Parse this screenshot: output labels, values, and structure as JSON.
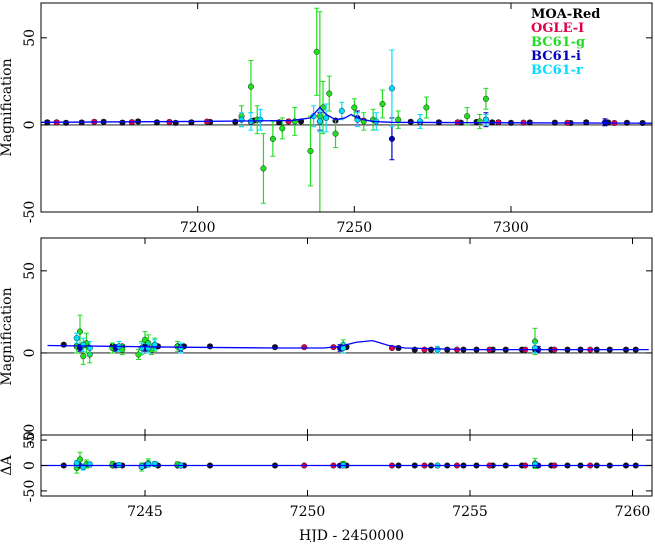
{
  "chart_data": [
    {
      "id": "top",
      "type": "scatter",
      "title": "",
      "xlabel": "",
      "ylabel": "Magnification",
      "xlim": [
        7150,
        7345
      ],
      "ylim": [
        -50,
        70
      ],
      "xticks": [
        7200,
        7250,
        7300
      ],
      "xtick_labels": [
        "7200",
        "7250",
        "7300"
      ],
      "yticks": [
        -50,
        0,
        50
      ],
      "ytick_labels": [
        "-50",
        "0",
        "50"
      ],
      "legend": {
        "placement": "top-right",
        "entries": [
          {
            "name": "MOA-Red",
            "color": "#000000"
          },
          {
            "name": "OGLE-I",
            "color": "#e0004f"
          },
          {
            "name": "BC61-g",
            "color": "#22dd22"
          },
          {
            "name": "BC61-i",
            "color": "#0000c0"
          },
          {
            "name": "BC61-r",
            "color": "#00ddff"
          }
        ]
      },
      "model": {
        "color": "#0000ff",
        "x": [
          7150,
          7200,
          7230,
          7236,
          7239,
          7241,
          7244,
          7247,
          7249,
          7251,
          7253,
          7256,
          7262,
          7300,
          7345
        ],
        "y": [
          1.5,
          2,
          2.5,
          4,
          10,
          6,
          3,
          4,
          6,
          4,
          3,
          2,
          1.5,
          1.2,
          1
        ]
      },
      "series": [
        {
          "name": "MOA-Red",
          "color": "#101030",
          "x": [
            7152,
            7158,
            7163,
            7170,
            7176,
            7181,
            7187,
            7193,
            7198,
            7204,
            7212,
            7218,
            7226,
            7233,
            7244,
            7268,
            7277,
            7284,
            7289,
            7294,
            7300,
            7306,
            7314,
            7319,
            7324,
            7331,
            7337,
            7342
          ],
          "y": [
            1.5,
            1.2,
            1.4,
            1.8,
            1.3,
            2,
            1.5,
            1.2,
            1.5,
            1.7,
            1.8,
            2.5,
            1.5,
            2,
            2.5,
            1.8,
            1.5,
            1.3,
            1.7,
            1.5,
            1.2,
            1.4,
            1.3,
            1.1,
            1.5,
            1.4,
            1.2,
            1.1
          ],
          "err": [
            1,
            1,
            1,
            1,
            1,
            1,
            1,
            1,
            1,
            1,
            1,
            1,
            1,
            1,
            1,
            1,
            1,
            1,
            1,
            1,
            1,
            1,
            1,
            1,
            1,
            1,
            1,
            1
          ]
        },
        {
          "name": "OGLE-I",
          "color": "#e0004f",
          "x": [
            7155,
            7167,
            7179,
            7191,
            7203,
            7217,
            7229,
            7253,
            7271,
            7283,
            7296,
            7304,
            7318,
            7333
          ],
          "y": [
            1.5,
            1.8,
            1.6,
            1.7,
            1.9,
            1.8,
            2,
            2.5,
            1.6,
            1.5,
            1.5,
            1.3,
            1.2,
            1.1
          ],
          "err": [
            1,
            1,
            1,
            1,
            1,
            1,
            1,
            1,
            1,
            1,
            1,
            1,
            1,
            1
          ]
        },
        {
          "name": "BC61-g",
          "color": "#22dd22",
          "x": [
            7214,
            7217,
            7219,
            7221,
            7224,
            7227,
            7231,
            7236,
            7238,
            7239,
            7240,
            7242,
            7244,
            7250,
            7253,
            7256,
            7259,
            7264,
            7273,
            7286,
            7290,
            7292
          ],
          "y": [
            5,
            22,
            3,
            -25,
            -8,
            -2,
            2,
            -15,
            42,
            5,
            10,
            18,
            -5,
            10,
            2,
            3,
            12,
            3,
            10,
            5,
            2,
            15
          ],
          "err": [
            6,
            15,
            8,
            20,
            10,
            6,
            8,
            20,
            25,
            60,
            15,
            10,
            8,
            5,
            5,
            6,
            8,
            5,
            6,
            5,
            4,
            6
          ]
        },
        {
          "name": "BC61-i",
          "color": "#0000c0",
          "x": [
            7239,
            7251,
            7262,
            7292,
            7330
          ],
          "y": [
            2,
            4,
            -8,
            3,
            1.5
          ],
          "err": [
            5,
            4,
            12,
            4,
            2
          ]
        },
        {
          "name": "BC61-r",
          "color": "#00ddff",
          "x": [
            7214,
            7217,
            7220,
            7237,
            7239,
            7241,
            7246,
            7251,
            7257,
            7262,
            7271,
            7292
          ],
          "y": [
            3,
            2,
            3,
            5,
            2,
            4,
            8,
            3,
            2,
            21,
            2,
            3
          ],
          "err": [
            4,
            5,
            6,
            6,
            6,
            8,
            5,
            4,
            5,
            22,
            4,
            3
          ]
        }
      ]
    },
    {
      "id": "middle",
      "type": "scatter",
      "title": "",
      "xlabel": "",
      "ylabel": "Magnification",
      "xlim": [
        7241.8,
        7260.6
      ],
      "ylim": [
        -50,
        70
      ],
      "xticks": [
        7245,
        7250,
        7255,
        7260
      ],
      "xtick_labels": [],
      "yticks": [
        -50,
        0,
        50
      ],
      "ytick_labels": [
        "-50",
        "0",
        "50"
      ],
      "model": {
        "color": "#0000ff",
        "x": [
          7242,
          7246,
          7249,
          7250.5,
          7251,
          7251.5,
          7252,
          7252.5,
          7253,
          7255,
          7260.5
        ],
        "y": [
          4.5,
          3.5,
          3,
          3,
          4,
          6.5,
          7.5,
          4.5,
          3,
          2,
          2
        ]
      },
      "series": [
        {
          "name": "MOA-Red",
          "color": "#101030",
          "x": [
            7242.5,
            7242.9,
            7243.2,
            7244,
            7244.3,
            7245,
            7245.4,
            7246,
            7246.2,
            7247,
            7249,
            7251.2,
            7252.8,
            7253.3,
            7253.8,
            7254.3,
            7254.8,
            7255.2,
            7255.7,
            7256.1,
            7256.6,
            7257,
            7257.5,
            7258,
            7258.4,
            7258.9,
            7259.3,
            7259.8,
            7260.1
          ],
          "y": [
            5,
            4,
            4.5,
            4,
            4,
            4,
            4,
            4,
            4,
            4,
            3.5,
            3.5,
            3,
            2,
            2,
            2,
            2,
            2,
            2,
            2,
            2,
            2,
            2,
            2,
            2,
            2,
            2,
            2,
            2
          ],
          "err": [
            1,
            1,
            1,
            1,
            1,
            1,
            1,
            1,
            1,
            1,
            1,
            1,
            1,
            1,
            1,
            1,
            1,
            1,
            1,
            1,
            1,
            1,
            1,
            1,
            1,
            1,
            1,
            1,
            1
          ]
        },
        {
          "name": "OGLE-I",
          "color": "#e0004f",
          "x": [
            7249.9,
            7250.8,
            7252.6,
            7253.6,
            7254.6,
            7255.6,
            7256.7,
            7257.6,
            7258.7
          ],
          "y": [
            3.5,
            3.5,
            3,
            2,
            2,
            2,
            2,
            2,
            2
          ],
          "err": [
            0.8,
            0.8,
            0.8,
            0.8,
            0.8,
            0.8,
            0.8,
            0.8,
            0.8
          ]
        },
        {
          "name": "BC61-g",
          "color": "#22dd22",
          "x": [
            7242.9,
            7243.0,
            7243.1,
            7243.2,
            7243.3,
            7244.0,
            7244.3,
            7244.8,
            7244.9,
            7245.0,
            7245.1,
            7245.2,
            7245.3,
            7246.0,
            7251.1,
            7257.0
          ],
          "y": [
            4,
            13,
            -2,
            6,
            -1,
            3,
            2,
            -1,
            3,
            8,
            6,
            2,
            5,
            4,
            5,
            7
          ],
          "err": [
            4,
            10,
            5,
            6,
            5,
            3,
            3,
            3,
            4,
            5,
            5,
            3,
            4,
            3,
            3,
            8
          ]
        },
        {
          "name": "BC61-i",
          "color": "#0000c0",
          "x": [
            7243.0,
            7244.1,
            7245.0,
            7246.1,
            7251.0,
            7257.1
          ],
          "y": [
            3,
            3,
            3,
            3,
            3,
            2
          ],
          "err": [
            2,
            2,
            2,
            2,
            2,
            2
          ]
        },
        {
          "name": "BC61-r",
          "color": "#00ddff",
          "x": [
            7242.9,
            7243.1,
            7243.3,
            7244.2,
            7244.9,
            7245.1,
            7245.3,
            7246.1,
            7251.1,
            7254.0,
            7257.0
          ],
          "y": [
            9,
            5,
            3,
            4,
            3,
            3,
            5,
            3,
            3,
            2,
            3
          ],
          "err": [
            3,
            4,
            4,
            3,
            3,
            3,
            3,
            3,
            3,
            2,
            3
          ]
        }
      ]
    },
    {
      "id": "residual",
      "type": "scatter",
      "title": "",
      "xlabel": "HJD - 2450000",
      "ylabel": "ΔA",
      "xlim": [
        7241.8,
        7260.6
      ],
      "ylim": [
        -60,
        60
      ],
      "xticks": [
        7245,
        7250,
        7255,
        7260
      ],
      "xtick_labels": [
        "7245",
        "7250",
        "7255",
        "7260"
      ],
      "yticks": [
        -50,
        0,
        50
      ],
      "ytick_labels": [
        "-50",
        "0",
        "50"
      ],
      "model": {
        "color": "#0000ff",
        "x": [
          7241.8,
          7260.6
        ],
        "y": [
          0,
          0
        ]
      },
      "series": [
        {
          "name": "MOA-Red",
          "color": "#101030",
          "x": [
            7242.5,
            7242.9,
            7243.2,
            7244,
            7244.3,
            7245,
            7245.4,
            7246,
            7246.2,
            7247,
            7249,
            7251.2,
            7252.8,
            7253.3,
            7253.8,
            7254.3,
            7254.8,
            7255.2,
            7255.7,
            7256.1,
            7256.6,
            7257,
            7257.5,
            7258,
            7258.4,
            7258.9,
            7259.3,
            7259.8,
            7260.1
          ],
          "y": [
            0,
            0,
            0,
            0,
            0,
            0,
            0,
            0,
            0,
            0,
            0,
            0,
            0,
            0,
            0,
            0,
            0,
            0,
            0,
            0,
            0,
            0,
            0,
            0,
            0,
            0,
            0,
            0,
            0
          ],
          "err": [
            3,
            3,
            3,
            3,
            3,
            3,
            3,
            3,
            3,
            3,
            3,
            3,
            3,
            3,
            3,
            3,
            3,
            3,
            3,
            3,
            3,
            3,
            3,
            3,
            3,
            3,
            3,
            3,
            3
          ]
        },
        {
          "name": "OGLE-I",
          "color": "#e0004f",
          "x": [
            7249.9,
            7250.8,
            7252.6,
            7253.6,
            7254.6,
            7255.6,
            7256.7,
            7257.6,
            7258.7
          ],
          "y": [
            0,
            0,
            0,
            0,
            0,
            0,
            0,
            0,
            0
          ],
          "err": [
            2,
            2,
            2,
            2,
            2,
            2,
            2,
            2,
            2
          ]
        },
        {
          "name": "BC61-g",
          "color": "#22dd22",
          "x": [
            7242.9,
            7243.0,
            7243.2,
            7244.0,
            7244.9,
            7245.1,
            7246.0,
            7251.1,
            7257.0
          ],
          "y": [
            -5,
            12,
            3,
            2,
            -3,
            5,
            2,
            3,
            4
          ],
          "err": [
            10,
            14,
            8,
            6,
            8,
            8,
            5,
            5,
            10
          ]
        },
        {
          "name": "BC61-i",
          "color": "#0000c0",
          "x": [
            7243.0,
            7244.1,
            7245.0,
            7246.1,
            7251.0,
            7257.1
          ],
          "y": [
            0,
            0,
            0,
            0,
            0,
            0
          ],
          "err": [
            3,
            3,
            3,
            3,
            3,
            3
          ]
        },
        {
          "name": "BC61-r",
          "color": "#00ddff",
          "x": [
            7242.9,
            7243.1,
            7243.3,
            7244.2,
            7244.9,
            7245.1,
            7245.3,
            7246.1,
            7251.1,
            7254.0,
            7257.0
          ],
          "y": [
            4,
            -3,
            2,
            1,
            -2,
            2,
            3,
            0,
            0,
            0,
            2
          ],
          "err": [
            6,
            6,
            5,
            4,
            5,
            5,
            5,
            4,
            4,
            3,
            4
          ]
        }
      ]
    }
  ]
}
